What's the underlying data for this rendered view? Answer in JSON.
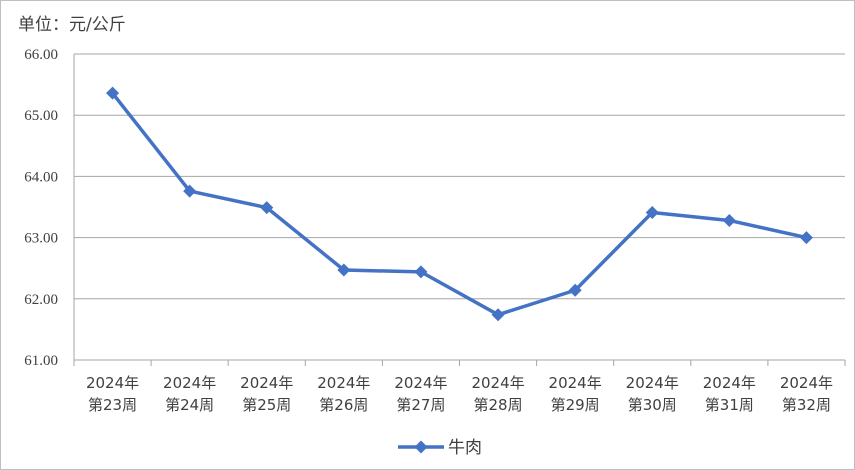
{
  "chart_data": {
    "type": "line",
    "unit_label": "单位：元/公斤",
    "categories": [
      [
        "2024年",
        "第23周"
      ],
      [
        "2024年",
        "第24周"
      ],
      [
        "2024年",
        "第25周"
      ],
      [
        "2024年",
        "第26周"
      ],
      [
        "2024年",
        "第27周"
      ],
      [
        "2024年",
        "第28周"
      ],
      [
        "2024年",
        "第29周"
      ],
      [
        "2024年",
        "第30周"
      ],
      [
        "2024年",
        "第31周"
      ],
      [
        "2024年",
        "第32周"
      ]
    ],
    "series": [
      {
        "name": "牛肉",
        "color": "#4472c4",
        "marker": "diamond",
        "values": [
          65.36,
          63.76,
          63.49,
          62.47,
          62.44,
          61.74,
          62.14,
          63.41,
          63.28,
          63.0
        ]
      }
    ],
    "yticks": [
      "61.00",
      "62.00",
      "63.00",
      "64.00",
      "65.00",
      "66.00"
    ],
    "ylim": [
      61,
      66
    ],
    "grid": true,
    "legend_position": "bottom"
  }
}
